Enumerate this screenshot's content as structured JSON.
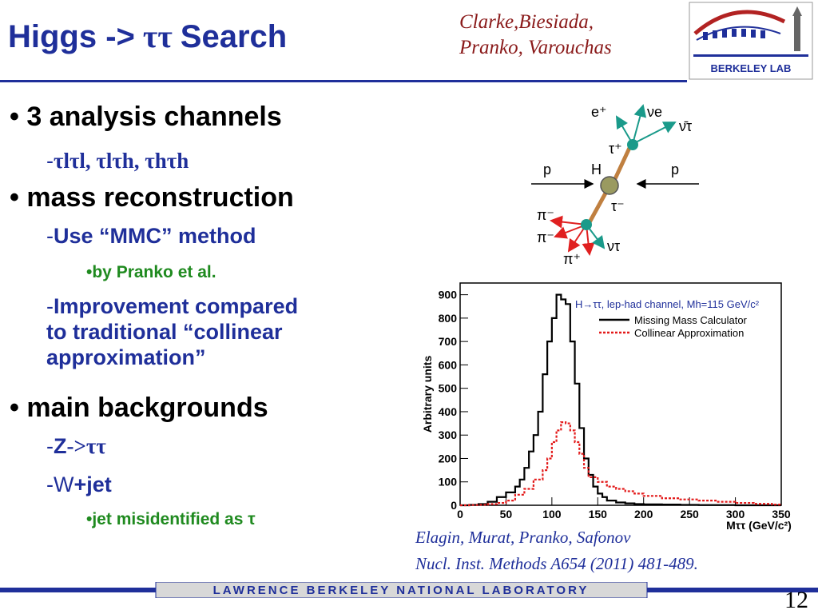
{
  "title": {
    "prefix": "Higgs ",
    "arrow": "->",
    "tau": " ττ ",
    "suffix": "Search"
  },
  "authors": [
    "Clarke,Biesiada,",
    "Pranko, Varouchas"
  ],
  "logo": {
    "text": "BERKELEY LAB"
  },
  "bullets": {
    "channels": "• 3 analysis channels",
    "channels_sub": "τlτl, τlτh, τhτh",
    "mass": "• mass reconstruction",
    "mass_sub1": "Use “MMC” method",
    "mass_sub1_sub": "•by Pranko et al.",
    "mass_sub2_l1": "Improvement compared",
    "mass_sub2_l2": "to traditional “collinear",
    "mass_sub2_l3": "approximation”",
    "backgrounds": "• main backgrounds",
    "bg_sub1_a": "Z",
    "bg_sub1_b": "->ττ",
    "bg_sub2_a": "W",
    "bg_sub2_b": "+jet",
    "bg_sub2_sub": "•jet misidentified as τ"
  },
  "diagram": {
    "labels": [
      "e⁺",
      "νe",
      "ν̄τ",
      "τ⁺",
      "p",
      "H",
      "p",
      "τ⁻",
      "π⁻",
      "π⁻",
      "π⁺",
      "ντ"
    ]
  },
  "citation": [
    "Elagin, Murat, Pranko, Safonov",
    "Nucl. Inst. Methods A654 (2011) 481-489."
  ],
  "footer": {
    "text": "LAWRENCE BERKELEY NATIONAL LABORATORY"
  },
  "page_number": "12",
  "colors": {
    "title_blue": "#1f2f9a",
    "green": "#1f8a1f",
    "author_red": "#8a1a1a",
    "mmc": "#000000",
    "collinear": "#e31a1a"
  },
  "chart_data": {
    "type": "line",
    "title": "H→ττ, lep-had channel, Mh=115 GeV/c²",
    "xlabel": "Mττ (GeV/c²)",
    "ylabel": "Arbitrary units",
    "xlim": [
      0,
      350
    ],
    "ylim": [
      0,
      950
    ],
    "x_ticks": [
      "0",
      "50",
      "100",
      "150",
      "200",
      "250",
      "300",
      "350"
    ],
    "y_ticks": [
      "0",
      "100",
      "200",
      "300",
      "400",
      "500",
      "600",
      "700",
      "800",
      "900"
    ],
    "legend_position": "top-right",
    "series": [
      {
        "name": "Missing Mass Calculator",
        "style": "solid",
        "x": [
          0,
          10,
          20,
          30,
          40,
          50,
          60,
          65,
          70,
          75,
          80,
          85,
          90,
          95,
          100,
          105,
          110,
          115,
          120,
          125,
          130,
          135,
          140,
          145,
          150,
          155,
          160,
          170,
          180,
          190,
          200,
          220,
          240,
          260,
          280,
          300,
          320,
          340,
          350
        ],
        "y": [
          0,
          2,
          5,
          15,
          35,
          55,
          80,
          110,
          160,
          230,
          300,
          400,
          560,
          700,
          800,
          900,
          880,
          860,
          700,
          520,
          330,
          200,
          130,
          80,
          50,
          35,
          20,
          12,
          8,
          5,
          4,
          3,
          2,
          1,
          1,
          0,
          0,
          0,
          0
        ]
      },
      {
        "name": "Collinear Approximation",
        "style": "dashed",
        "x": [
          0,
          10,
          20,
          30,
          40,
          50,
          60,
          70,
          80,
          90,
          95,
          100,
          105,
          110,
          115,
          120,
          125,
          130,
          135,
          140,
          150,
          160,
          170,
          180,
          190,
          200,
          220,
          240,
          260,
          280,
          300,
          320,
          340,
          350
        ],
        "y": [
          0,
          1,
          2,
          5,
          10,
          20,
          45,
          70,
          110,
          150,
          200,
          270,
          320,
          355,
          350,
          320,
          270,
          220,
          160,
          120,
          100,
          80,
          70,
          60,
          50,
          40,
          30,
          25,
          20,
          15,
          10,
          6,
          3,
          2
        ]
      }
    ]
  }
}
